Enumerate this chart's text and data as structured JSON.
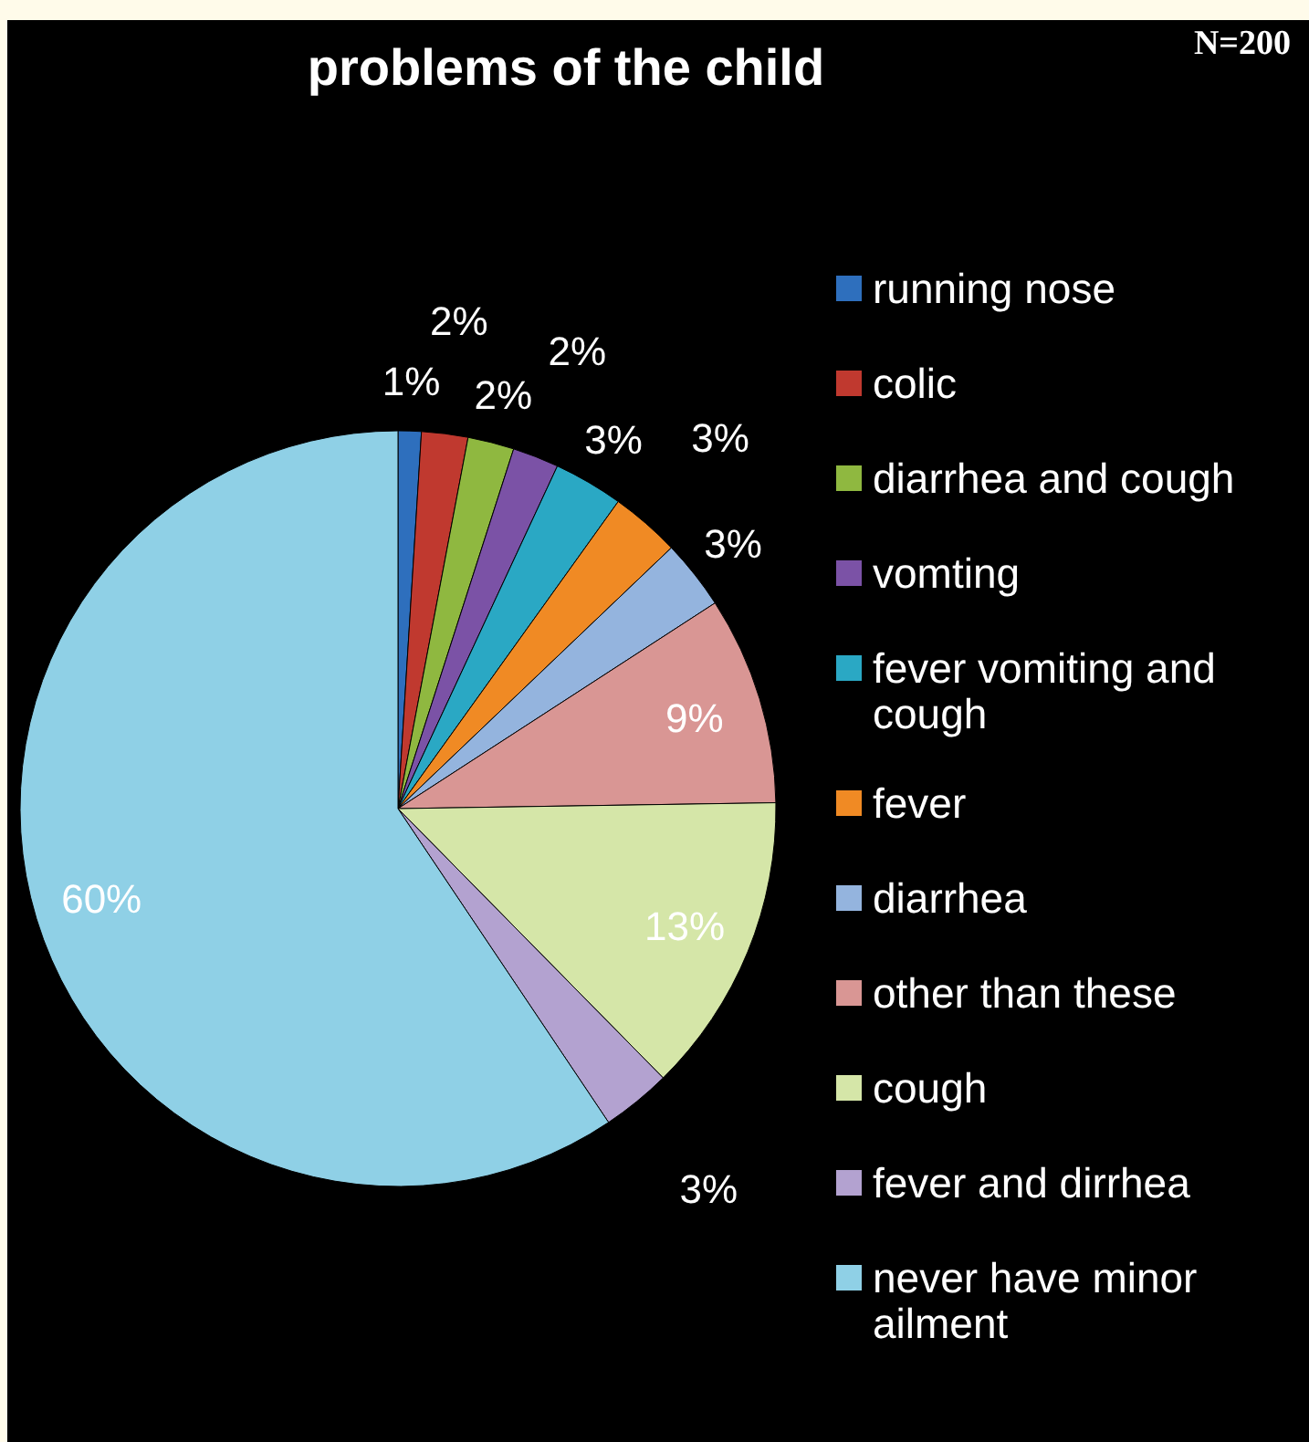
{
  "chart_data": {
    "type": "pie",
    "title": "problems of the child",
    "annotations": [
      "N=200"
    ],
    "categories": [
      "running nose",
      "colic",
      "diarrhea and cough",
      "vomting",
      "fever vomiting and cough",
      "fever",
      "diarrhea",
      "other than these",
      "cough",
      "fever and dirrhea",
      "never have minor ailment"
    ],
    "values": [
      1,
      2,
      2,
      2,
      3,
      3,
      3,
      9,
      13,
      3,
      60
    ],
    "colors": [
      "#2e6fbd",
      "#c0392f",
      "#8fb840",
      "#7b52a6",
      "#2aa8c4",
      "#f08a24",
      "#94b4de",
      "#d99694",
      "#d5e6a8",
      "#b3a2d0",
      "#8fd0e6"
    ],
    "value_labels": [
      "1%",
      "2%",
      "2%",
      "2%",
      "3%",
      "3%",
      "3%",
      "9%",
      "13%",
      "3%",
      "60%"
    ],
    "legend": "right"
  }
}
